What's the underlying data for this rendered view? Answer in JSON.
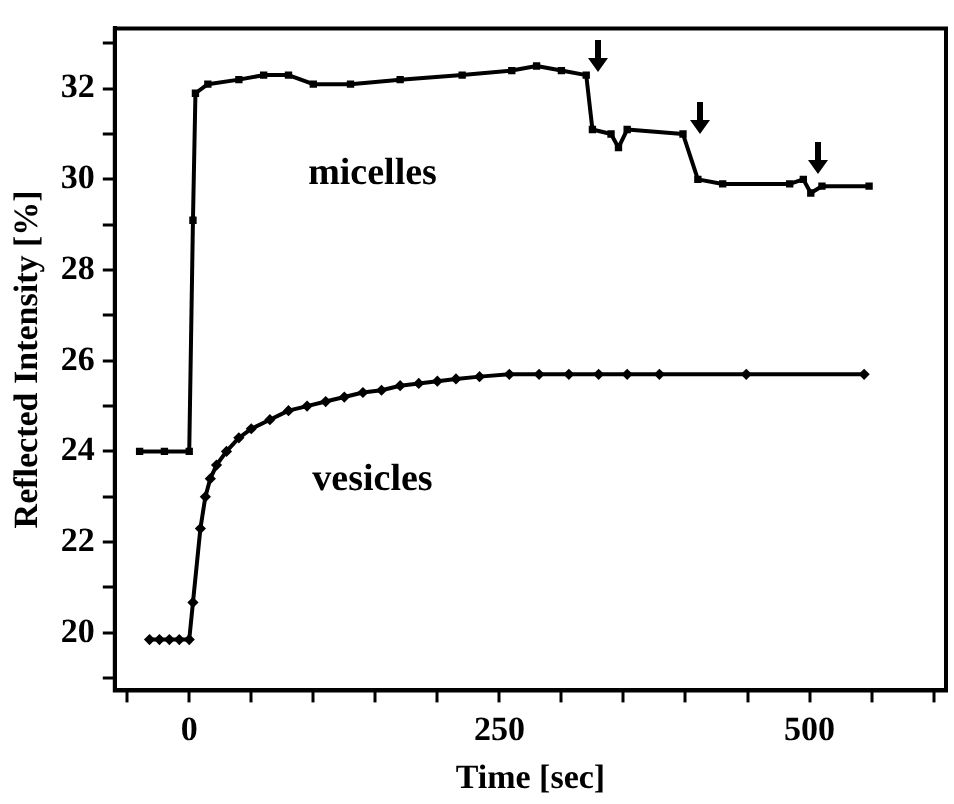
{
  "chart_data": {
    "type": "line",
    "xlabel": "Time [sec]",
    "ylabel": "Reflected Intensity [%]",
    "xlim": [
      -60,
      610
    ],
    "ylim": [
      18.73,
      33.33
    ],
    "xticks": [
      {
        "value": -50,
        "label": null
      },
      0,
      {
        "value": 50,
        "label": null
      },
      {
        "value": 100,
        "label": null
      },
      {
        "value": 150,
        "label": null
      },
      {
        "value": 200,
        "label": null
      },
      250,
      {
        "value": 300,
        "label": null
      },
      {
        "value": 350,
        "label": null
      },
      {
        "value": 400,
        "label": null
      },
      {
        "value": 450,
        "label": null
      },
      500,
      {
        "value": 550,
        "label": null
      },
      {
        "value": 600,
        "label": null
      }
    ],
    "yticks": [
      {
        "value": 19,
        "label": null
      },
      20,
      {
        "value": 21,
        "label": null
      },
      22,
      {
        "value": 23,
        "label": null
      },
      24,
      {
        "value": 25,
        "label": null
      },
      26,
      {
        "value": 27,
        "label": null
      },
      28,
      {
        "value": 29,
        "label": null
      },
      30,
      {
        "value": 31,
        "label": null
      },
      32,
      {
        "value": 33,
        "label": null
      }
    ],
    "grid": false,
    "legend": false,
    "line_style": "solid",
    "series": [
      {
        "name": "micelles",
        "color": "#000000",
        "marker": "square",
        "x": [
          -40,
          -20,
          0,
          3,
          5,
          15,
          40,
          60,
          80,
          100,
          130,
          170,
          220,
          260,
          280,
          300,
          320,
          325,
          340,
          346,
          353,
          398,
          410,
          430,
          484,
          495,
          501,
          510,
          548
        ],
        "values": [
          24,
          24,
          24,
          29.1,
          31.9,
          32.1,
          32.2,
          32.3,
          32.3,
          32.1,
          32.1,
          32.2,
          32.3,
          32.4,
          32.5,
          32.4,
          32.3,
          31.1,
          31.0,
          30.7,
          31.1,
          31.0,
          30.0,
          29.9,
          29.9,
          30.0,
          29.7,
          29.85,
          29.85
        ]
      },
      {
        "name": "vesicles",
        "color": "#000000",
        "marker": "diamond",
        "x": [
          -32,
          -24,
          -16,
          -8,
          0,
          3,
          9,
          13,
          17,
          22,
          30,
          40,
          50,
          65,
          80,
          95,
          110,
          125,
          140,
          155,
          170,
          185,
          200,
          215,
          234,
          258,
          282,
          306,
          330,
          353,
          379,
          449,
          544
        ],
        "values": [
          19.85,
          19.85,
          19.85,
          19.85,
          19.85,
          20.67,
          22.3,
          23.0,
          23.4,
          23.7,
          24.0,
          24.3,
          24.5,
          24.7,
          24.9,
          25.0,
          25.1,
          25.2,
          25.3,
          25.35,
          25.45,
          25.5,
          25.55,
          25.6,
          25.65,
          25.7,
          25.7,
          25.7,
          25.7,
          25.7,
          25.7,
          25.7,
          25.7
        ]
      }
    ]
  }
}
